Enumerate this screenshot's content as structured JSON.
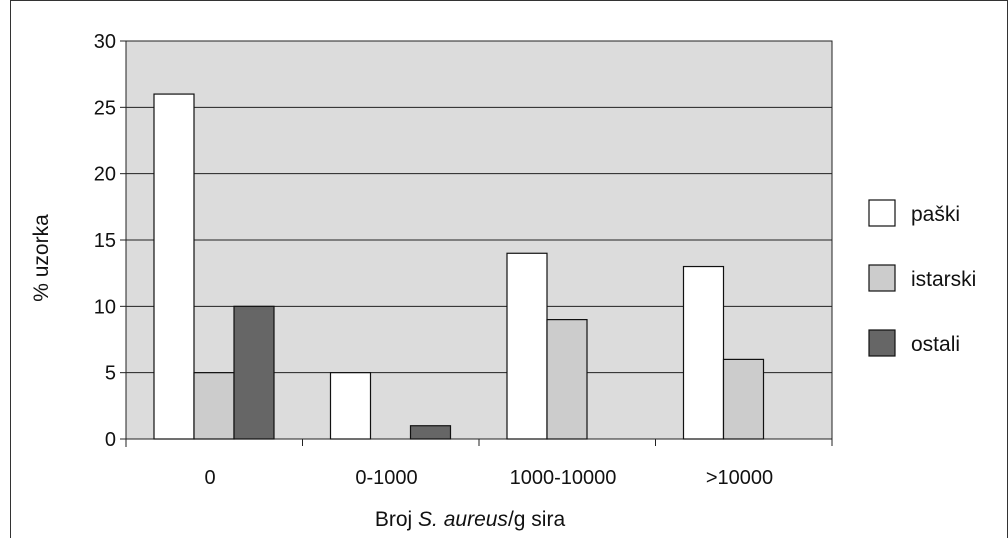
{
  "chart_data": {
    "type": "bar",
    "title": "",
    "xlabel_parts": [
      "Broj ",
      "S. aureus",
      "/g sira"
    ],
    "ylabel": "% uzorka",
    "categories": [
      "0",
      "0-1000",
      "1000-10000",
      ">10000"
    ],
    "series": [
      {
        "name": "paški",
        "values": [
          26,
          5,
          14,
          13
        ],
        "color": "#ffffff"
      },
      {
        "name": "istarski",
        "values": [
          5,
          0,
          9,
          6
        ],
        "color": "#cccccc"
      },
      {
        "name": "ostali",
        "values": [
          10,
          1,
          0,
          0
        ],
        "color": "#666666"
      }
    ],
    "ylim": [
      0,
      30
    ],
    "yticks": [
      "0",
      "5",
      "10",
      "15",
      "20",
      "25",
      "30"
    ],
    "grid": true,
    "plot_background": "#dcdcdc",
    "legend_position": "right"
  }
}
